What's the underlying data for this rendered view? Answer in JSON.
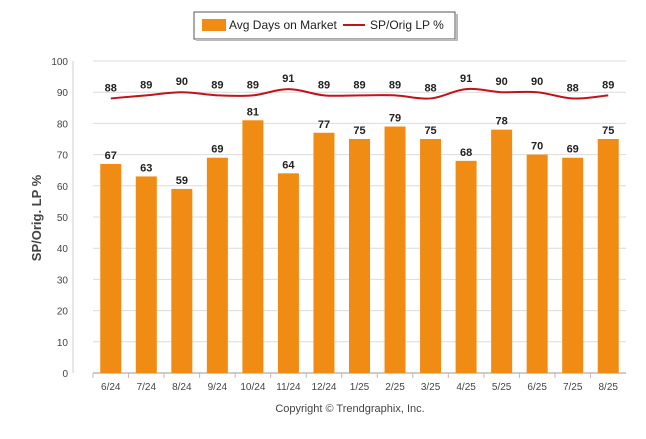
{
  "chart_data": {
    "type": "bar",
    "categories": [
      "6/24",
      "7/24",
      "8/24",
      "9/24",
      "10/24",
      "11/24",
      "12/24",
      "1/25",
      "2/25",
      "3/25",
      "4/25",
      "5/25",
      "6/25",
      "7/25",
      "8/25"
    ],
    "series": [
      {
        "name": "Avg Days on Market",
        "kind": "bar",
        "color": "#f08c14",
        "values": [
          67,
          63,
          59,
          69,
          81,
          64,
          77,
          75,
          79,
          75,
          68,
          78,
          70,
          69,
          75
        ]
      },
      {
        "name": "SP/Orig LP %",
        "kind": "line",
        "color": "#c0141b",
        "values": [
          88,
          89,
          90,
          89,
          89,
          91,
          89,
          89,
          89,
          88,
          91,
          90,
          90,
          88,
          89
        ]
      }
    ],
    "ylabel": "SP/Orig. LP %",
    "yticks": [
      0,
      10,
      20,
      30,
      40,
      50,
      60,
      70,
      80,
      90,
      100
    ],
    "ylim": [
      0,
      100
    ],
    "grid": true,
    "legend_position": "top-center"
  },
  "footer": {
    "copyright": "Copyright © Trendgraphix, Inc."
  }
}
